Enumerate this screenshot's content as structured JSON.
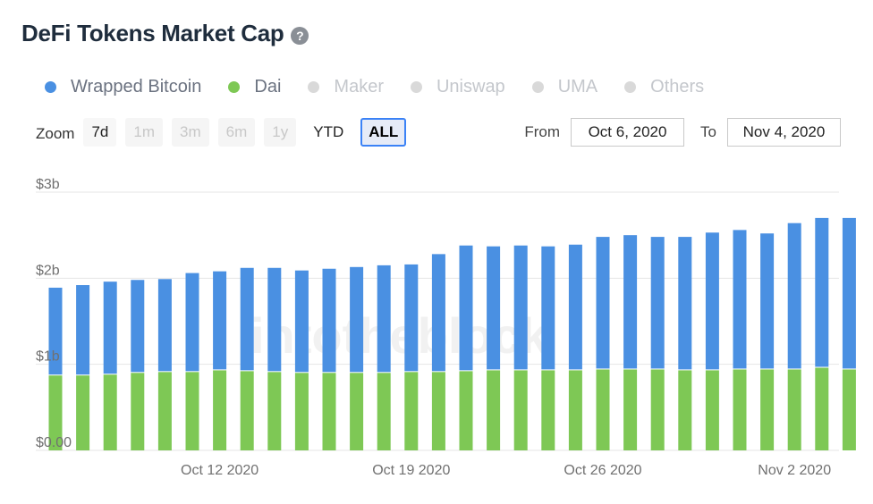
{
  "title": "DeFi Tokens Market Cap",
  "help_icon_glyph": "?",
  "legend": [
    {
      "label": "Wrapped Bitcoin",
      "color": "#4a90e2",
      "active": true
    },
    {
      "label": "Dai",
      "color": "#7ec855",
      "active": true
    },
    {
      "label": "Maker",
      "color": "#d9d9d9",
      "active": false
    },
    {
      "label": "Uniswap",
      "color": "#d9d9d9",
      "active": false
    },
    {
      "label": "UMA",
      "color": "#d9d9d9",
      "active": false
    },
    {
      "label": "Others",
      "color": "#d9d9d9",
      "active": false
    }
  ],
  "zoom": {
    "label": "Zoom",
    "buttons": [
      {
        "label": "7d",
        "state": "enabled"
      },
      {
        "label": "1m",
        "state": "disabled"
      },
      {
        "label": "3m",
        "state": "disabled"
      },
      {
        "label": "6m",
        "state": "disabled"
      },
      {
        "label": "1y",
        "state": "disabled"
      },
      {
        "label": "YTD",
        "state": "enabled"
      },
      {
        "label": "ALL",
        "state": "selected"
      }
    ]
  },
  "range": {
    "from_label": "From",
    "from_value": "Oct 6, 2020",
    "to_label": "To",
    "to_value": "Nov 4, 2020"
  },
  "watermark": "intotheblock",
  "chart_data": {
    "type": "bar",
    "stacked": true,
    "y_ticks": [
      "$0.00",
      "$1b",
      "$2b",
      "$3b"
    ],
    "y_tick_values": [
      0,
      1,
      2,
      3
    ],
    "ylim": [
      0,
      3
    ],
    "y_unit": "billions USD",
    "x_tick_labels": [
      "Oct 12 2020",
      "Oct 19 2020",
      "Oct 26 2020",
      "Nov 2 2020"
    ],
    "x_tick_dates": [
      "2020-10-12",
      "2020-10-19",
      "2020-10-26",
      "2020-11-02"
    ],
    "categories": [
      "2020-10-06",
      "2020-10-07",
      "2020-10-08",
      "2020-10-09",
      "2020-10-10",
      "2020-10-11",
      "2020-10-12",
      "2020-10-13",
      "2020-10-14",
      "2020-10-15",
      "2020-10-16",
      "2020-10-17",
      "2020-10-18",
      "2020-10-19",
      "2020-10-20",
      "2020-10-21",
      "2020-10-22",
      "2020-10-23",
      "2020-10-24",
      "2020-10-25",
      "2020-10-26",
      "2020-10-27",
      "2020-10-28",
      "2020-10-29",
      "2020-10-30",
      "2020-10-31",
      "2020-11-01",
      "2020-11-02",
      "2020-11-03",
      "2020-11-04"
    ],
    "series": [
      {
        "name": "Dai",
        "color": "#7ec855",
        "values": [
          0.87,
          0.87,
          0.88,
          0.9,
          0.91,
          0.91,
          0.93,
          0.92,
          0.91,
          0.9,
          0.9,
          0.9,
          0.9,
          0.91,
          0.91,
          0.92,
          0.93,
          0.93,
          0.93,
          0.93,
          0.94,
          0.94,
          0.94,
          0.93,
          0.93,
          0.94,
          0.94,
          0.94,
          0.96,
          0.94
        ]
      },
      {
        "name": "Wrapped Bitcoin",
        "color": "#4a90e2",
        "values": [
          1.02,
          1.05,
          1.08,
          1.08,
          1.08,
          1.15,
          1.15,
          1.2,
          1.21,
          1.19,
          1.21,
          1.23,
          1.25,
          1.25,
          1.37,
          1.46,
          1.44,
          1.45,
          1.44,
          1.46,
          1.54,
          1.56,
          1.54,
          1.55,
          1.6,
          1.62,
          1.58,
          1.7,
          1.74,
          1.76
        ]
      }
    ],
    "grid": true,
    "legend_position": "top-left"
  }
}
